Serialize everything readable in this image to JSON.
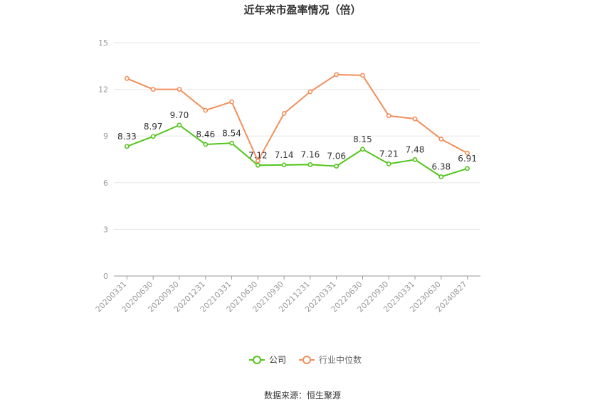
{
  "chart_data": {
    "type": "line",
    "title": "近年来市盈率情况（倍）",
    "categories": [
      "20200331",
      "20200630",
      "20200930",
      "20201231",
      "20210331",
      "20210630",
      "20210930",
      "20211231",
      "20220331",
      "20220630",
      "20220930",
      "20230331",
      "20230630",
      "20240827"
    ],
    "series": [
      {
        "name": "公司",
        "color": "#52c41a",
        "values": [
          8.33,
          8.97,
          9.7,
          8.46,
          8.54,
          7.12,
          7.14,
          7.16,
          7.06,
          8.15,
          7.21,
          7.48,
          6.38,
          6.91
        ],
        "labels": [
          "8.33",
          "8.97",
          "9.70",
          "8.46",
          "8.54",
          "7.12",
          "7.14",
          "7.16",
          "7.06",
          "8.15",
          "7.21",
          "7.48",
          "6.38",
          "6.91"
        ]
      },
      {
        "name": "行业中位数",
        "color": "#f28e5b",
        "values": [
          12.7,
          12.0,
          12.0,
          10.65,
          11.2,
          7.4,
          10.45,
          11.85,
          12.95,
          12.9,
          10.3,
          10.1,
          8.8,
          7.9
        ]
      }
    ],
    "yticks": [
      "0",
      "3",
      "6",
      "9",
      "12",
      "15"
    ],
    "ylim": [
      0,
      15
    ],
    "grid": true,
    "legend_position": "bottom-center"
  },
  "source_text": "数据来源：恒生聚源"
}
